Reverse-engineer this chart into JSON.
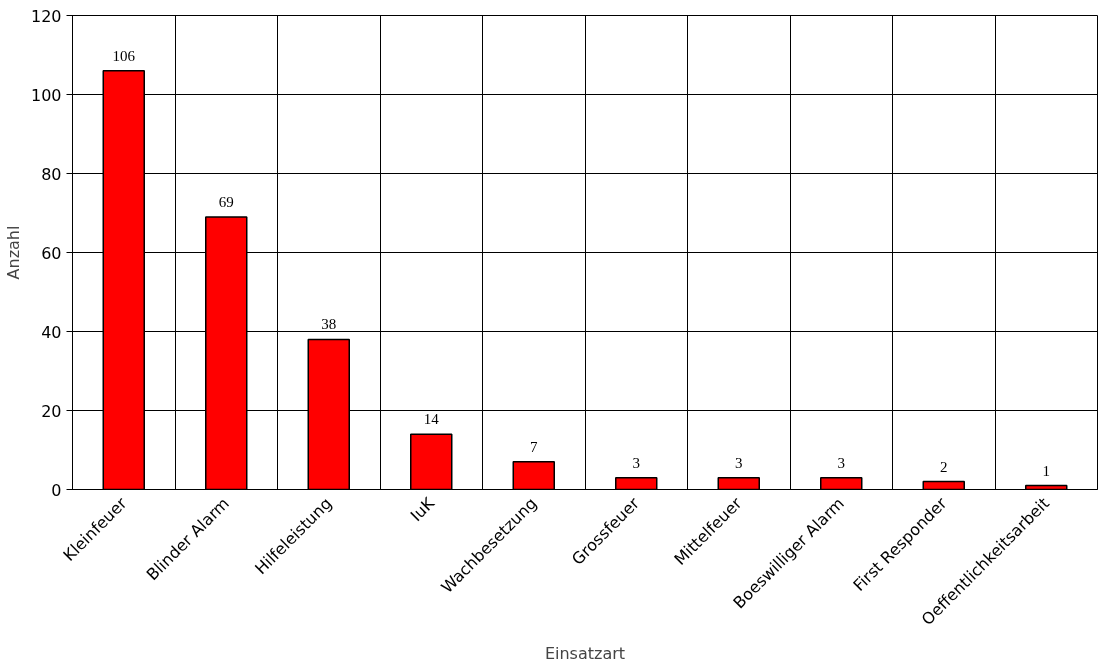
{
  "chart_data": {
    "type": "bar",
    "xlabel": "Einsatzart",
    "ylabel": "Anzahl",
    "categories": [
      "Kleinfeuer",
      "Blinder Alarm",
      "Hilfeleistung",
      "IuK",
      "Wachbesetzung",
      "Grossfeuer",
      "Mittelfeuer",
      "Boeswilliger Alarm",
      "First Responder",
      "Oeffentlichkeitsarbeit"
    ],
    "values": [
      106,
      69,
      38,
      14,
      7,
      3,
      3,
      3,
      2,
      1
    ],
    "color": "#ff0000",
    "ylim": [
      0,
      120
    ],
    "yticks": [
      0,
      20,
      40,
      60,
      80,
      100,
      120
    ],
    "grid": true,
    "data_labels": true
  }
}
